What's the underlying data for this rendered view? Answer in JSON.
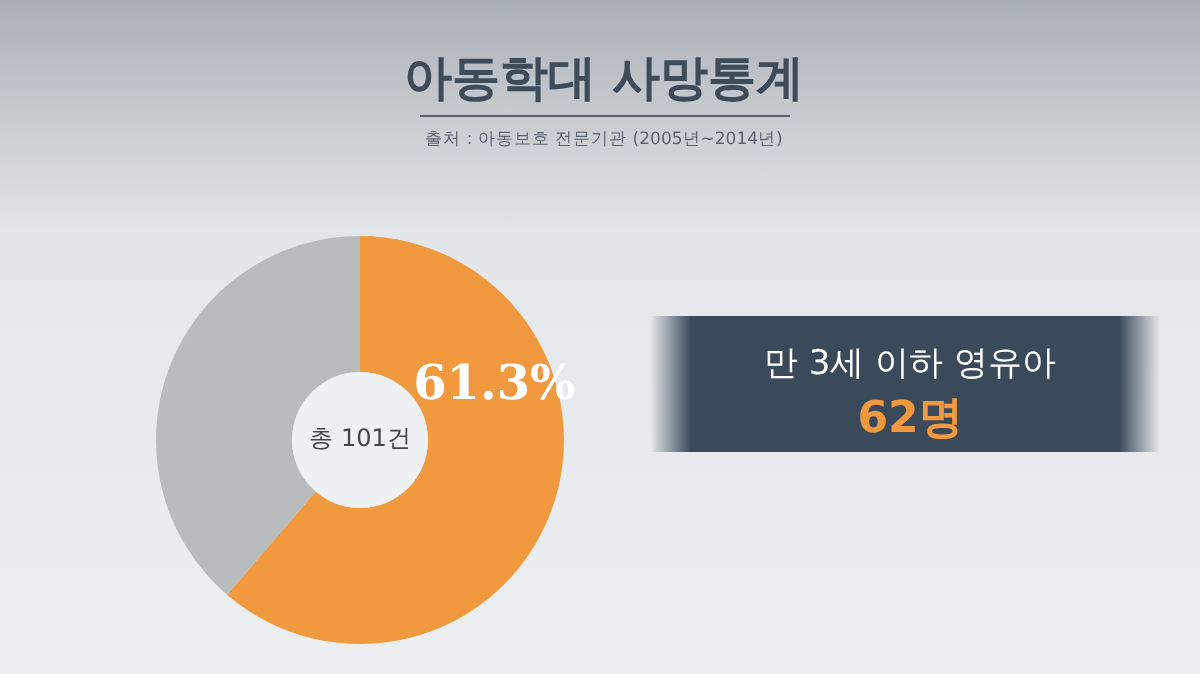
{
  "chart_data": {
    "type": "donut",
    "title": "아동학대 사망통계",
    "annotations": [
      "출처 : 아동보호 전문기관 (2005년~2014년)",
      "총 101건",
      "만 3세 이하 영유아",
      "62명"
    ],
    "categories": [
      null,
      null
    ],
    "values": [
      61.3,
      38.7
    ],
    "colors": [
      "#f0993f",
      "#b9bcbc"
    ],
    "value_labels": [
      "61.3%",
      null
    ]
  }
}
